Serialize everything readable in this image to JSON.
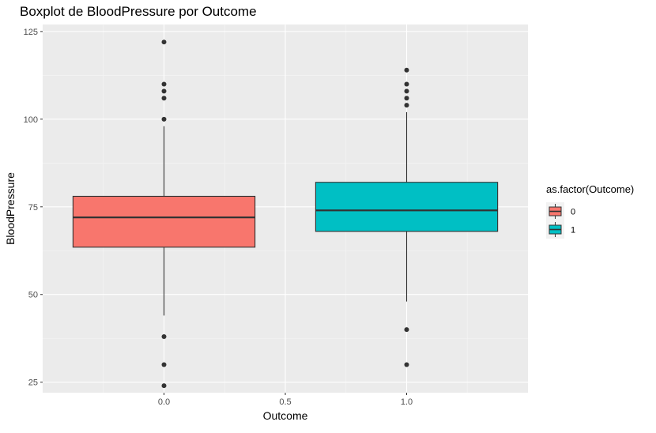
{
  "chart_data": {
    "type": "boxplot",
    "title": "Boxplot de BloodPressure por Outcome",
    "xlabel": "Outcome",
    "ylabel": "BloodPressure",
    "xlim": [
      -0.5,
      1.5
    ],
    "ylim": [
      22,
      127
    ],
    "x_ticks": [
      0,
      0.5,
      1
    ],
    "x_tick_labels": [
      "0.0",
      "0.5",
      "1.0"
    ],
    "y_ticks": [
      25,
      50,
      75,
      100,
      125
    ],
    "y_tick_labels": [
      "25",
      "50",
      "75",
      "100",
      "125"
    ],
    "grid": true,
    "legend": {
      "title": "as.factor(Outcome)",
      "placement": "right",
      "entries": [
        {
          "label": "0",
          "color": "#f8766d"
        },
        {
          "label": "1",
          "color": "#00bfc4"
        }
      ]
    },
    "boxes": [
      {
        "name": "0",
        "x": 0,
        "color": "#f8766d",
        "whisker_low": 44,
        "q1": 63.5,
        "median": 72,
        "q3": 78,
        "whisker_high": 98,
        "outliers": [
          24,
          30,
          38,
          100,
          106,
          108,
          110,
          122
        ]
      },
      {
        "name": "1",
        "x": 1,
        "color": "#00bfc4",
        "whisker_low": 48,
        "q1": 68,
        "median": 74,
        "q3": 82,
        "whisker_high": 102,
        "outliers": [
          30,
          40,
          104,
          106,
          108,
          110,
          114
        ]
      }
    ]
  }
}
